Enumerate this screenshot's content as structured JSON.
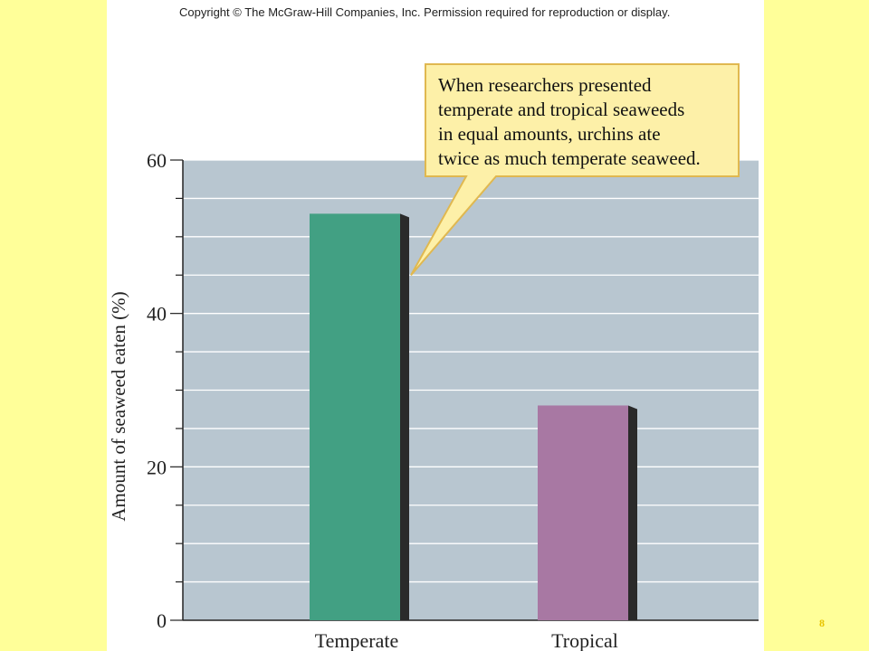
{
  "copyright": "Copyright © The McGraw-Hill Companies, Inc. Permission required for reproduction or display.",
  "slide_number": "8",
  "colors": {
    "page_background": "#ffff99",
    "plot_background": "#b8c6d0",
    "temperate_bar": "#42a083",
    "tropical_bar": "#a878a3",
    "callout_fill": "#fdf0a8",
    "callout_border": "#e0b850"
  },
  "chart_data": {
    "type": "bar",
    "title": "",
    "xlabel": "",
    "ylabel": "Amount of seaweed eaten (%)",
    "ylim": [
      0,
      60
    ],
    "yticks": [
      0,
      20,
      40,
      60
    ],
    "minor_tick_step": 5,
    "grid": true,
    "categories": [
      "Temperate",
      "Tropical"
    ],
    "values": [
      53,
      28
    ],
    "annotation": {
      "lines": [
        "When researchers presented",
        "temperate and tropical seaweeds",
        "in equal amounts, urchins ate",
        "twice as much temperate seaweed."
      ],
      "points_to": "Temperate"
    }
  }
}
